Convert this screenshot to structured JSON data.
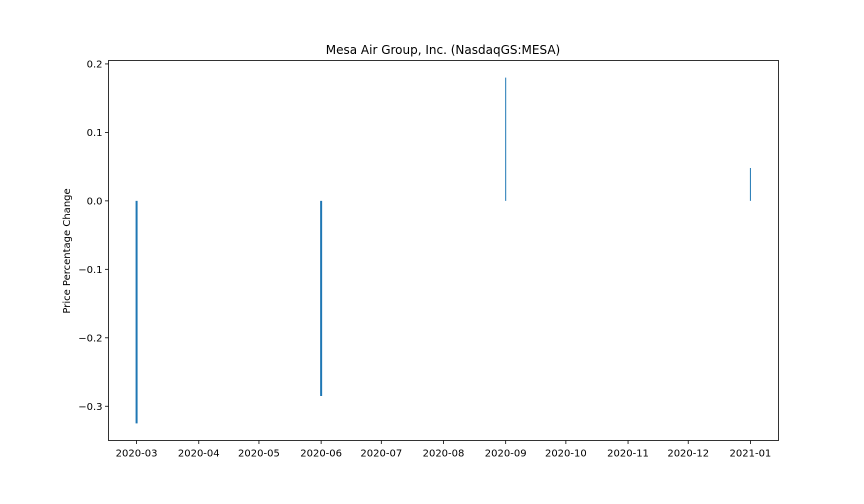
{
  "chart_data": {
    "type": "bar",
    "title": "Mesa Air Group, Inc. (NasdaqGS:MESA)",
    "xlabel": "",
    "ylabel": "Price Percentage Change",
    "x_type": "date",
    "xlim": [
      "2020-02-16",
      "2021-01-15"
    ],
    "ylim": [
      -0.35,
      0.205
    ],
    "x_ticks": [
      "2020-03",
      "2020-04",
      "2020-05",
      "2020-06",
      "2020-07",
      "2020-08",
      "2020-09",
      "2020-10",
      "2020-11",
      "2020-12",
      "2021-01"
    ],
    "y_ticks": [
      0.2,
      0.1,
      0.0,
      -0.1,
      -0.2,
      -0.3
    ],
    "y_tick_labels": [
      "0.2",
      "0.1",
      "0.0",
      "−0.1",
      "−0.2",
      "−0.3"
    ],
    "grid": false,
    "legend": "none",
    "bar_color": "#1f77b4",
    "series": [
      {
        "values": [
          {
            "x": "2020-03-01",
            "y": -0.325
          },
          {
            "x": "2020-06-01",
            "y": -0.285
          },
          {
            "x": "2020-09-01",
            "y": 0.18
          },
          {
            "x": "2021-01-01",
            "y": 0.048
          }
        ]
      }
    ]
  }
}
